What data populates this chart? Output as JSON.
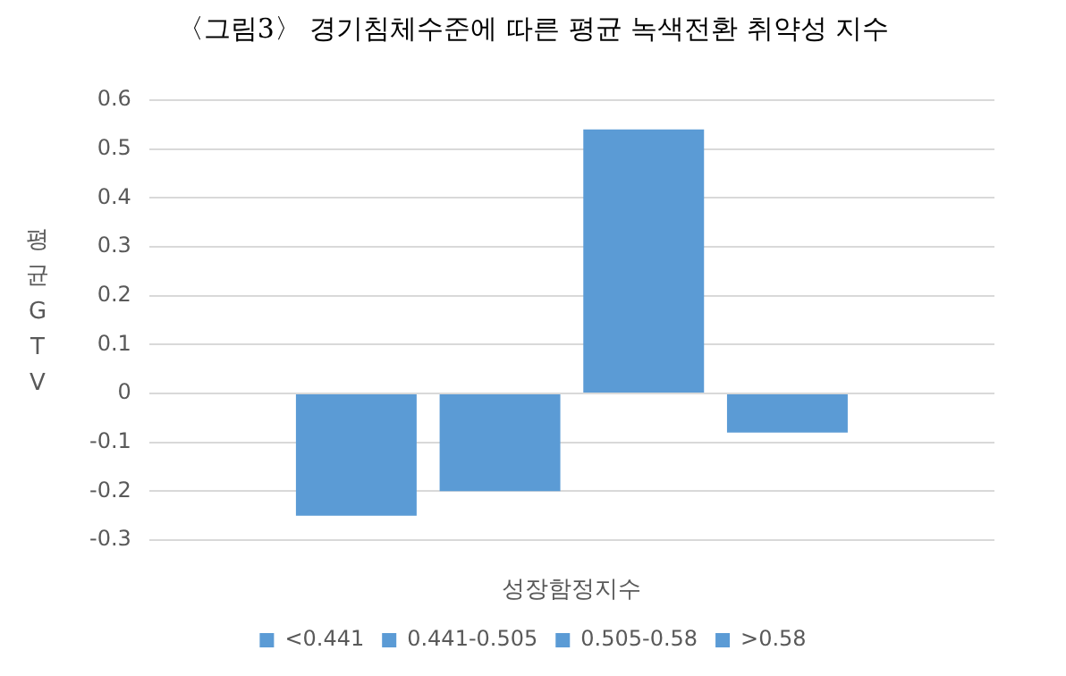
{
  "chart_data": {
    "type": "bar",
    "title": "〈그림3〉 경기침체수준에 따른 평균 녹색전환 취약성 지수",
    "xlabel": "성장함정지수",
    "ylabel": "평균GTV",
    "categories": [
      null
    ],
    "series": [
      {
        "name": "<0.441",
        "color": "#5b9bd5",
        "values": [
          -0.25
        ]
      },
      {
        "name": "0.441-0.505",
        "color": "#5b9bd5",
        "values": [
          -0.2
        ]
      },
      {
        "name": "0.505-0.58",
        "color": "#5b9bd5",
        "values": [
          0.54
        ]
      },
      {
        "name": ">0.58",
        "color": "#5b9bd5",
        "values": [
          -0.08
        ]
      }
    ],
    "ylim": [
      -0.3,
      0.6
    ],
    "yticks": [
      -0.3,
      -0.2,
      -0.1,
      0,
      0.1,
      0.2,
      0.3,
      0.4,
      0.5,
      0.6
    ],
    "grid": "y",
    "legend": "bottom"
  }
}
